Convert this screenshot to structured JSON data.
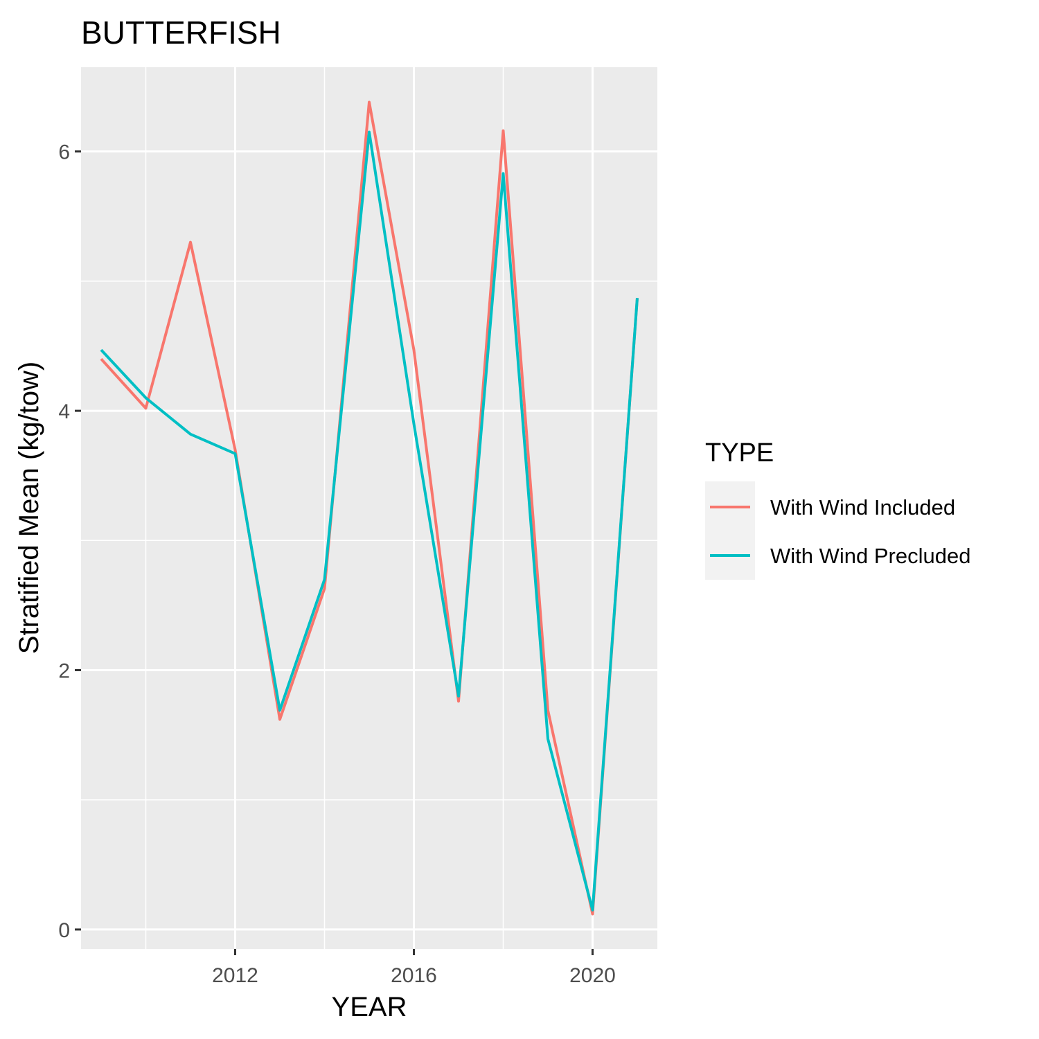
{
  "chart_data": {
    "type": "line",
    "title": "BUTTERFISH",
    "xlabel": "YEAR",
    "ylabel": "Stratified Mean (kg/tow)",
    "xlim": [
      2008.55,
      2021.45
    ],
    "ylim": [
      -0.15,
      6.65
    ],
    "x_ticks": [
      2012,
      2016,
      2020
    ],
    "x_tick_labels": [
      "2012",
      "2016",
      "2020"
    ],
    "y_ticks": [
      0,
      2,
      4,
      6
    ],
    "y_tick_labels": [
      "0",
      "2",
      "4",
      "6"
    ],
    "x_minor": [
      2010,
      2014,
      2018
    ],
    "y_minor": [
      1,
      3,
      5
    ],
    "grid": true,
    "legend": {
      "title": "TYPE",
      "position": "right"
    },
    "x": [
      2009,
      2010,
      2011,
      2012,
      2013,
      2014,
      2015,
      2016,
      2017,
      2018,
      2019,
      2020,
      2021
    ],
    "series": [
      {
        "name": "With Wind Included",
        "color": "#F8766D",
        "values": [
          4.4,
          4.02,
          5.3,
          3.7,
          1.62,
          2.63,
          6.38,
          4.47,
          1.76,
          6.16,
          1.69,
          0.12,
          4.87
        ]
      },
      {
        "name": "With Wind Precluded",
        "color": "#00BFC4",
        "values": [
          4.47,
          4.1,
          3.82,
          3.67,
          1.69,
          2.7,
          6.15,
          3.9,
          1.8,
          5.83,
          1.47,
          0.15,
          4.87
        ]
      }
    ]
  }
}
